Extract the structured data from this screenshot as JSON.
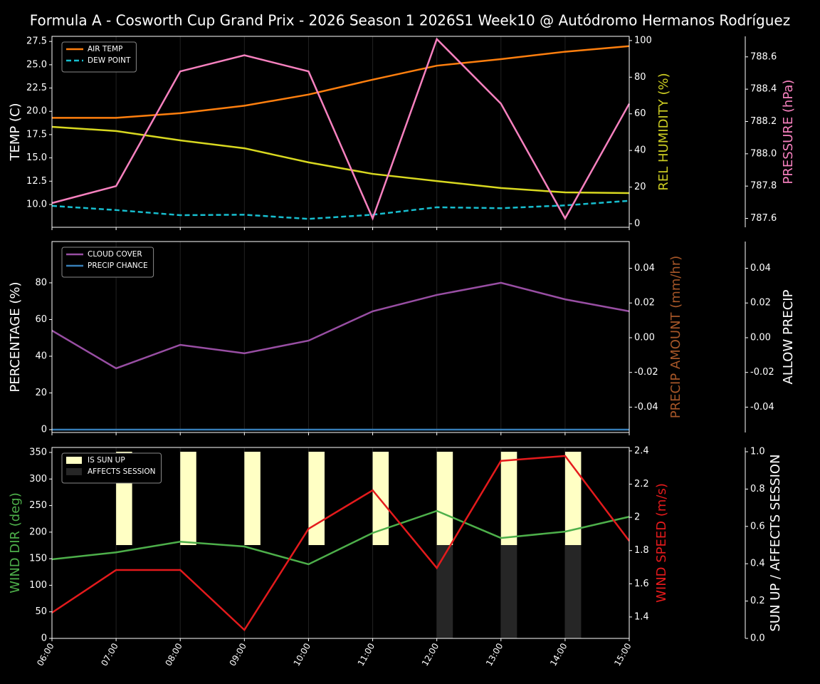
{
  "title": "Formula A - Cosworth Cup Grand Prix - 2026 Season 1 2026S1 Week10 @ Autódromo Hermanos Rodríguez",
  "chart_data": [
    {
      "type": "line",
      "ylabel": "TEMP (C)",
      "ylabel_color": "#ffffff",
      "ylim": [
        7.55,
        28.05
      ],
      "yticks": [
        {
          "value": 10,
          "label": "10.0"
        },
        12.5,
        {
          "value": 15,
          "label": "15.0"
        },
        17.5,
        {
          "value": 20,
          "label": "20.0"
        },
        22.5,
        {
          "value": 25,
          "label": "25.0"
        },
        27.5
      ],
      "y2label": "REL HUMIDITY (%)",
      "y2label_color": "#cccc22",
      "y2lim": [
        -1.95,
        102.3
      ],
      "y2ticks": [
        0,
        20,
        40,
        60,
        80,
        100
      ],
      "y3label": "PRESSURE (hPa)",
      "y3label_color": "#f781bf",
      "y3lim": [
        787.545,
        788.727
      ],
      "y3ticks": [
        787.6,
        787.8,
        {
          "value": 788,
          "label": "788.0"
        },
        788.2,
        788.4,
        788.6
      ],
      "series": [
        {
          "name": "AIR TEMP",
          "color": "#ff7f0e",
          "values": [
            19.3,
            19.3,
            19.8,
            20.6,
            21.8,
            23.4,
            24.9,
            25.6,
            26.4,
            27.0
          ]
        },
        {
          "name": "DEW POINT",
          "color": "#17becf",
          "dash": true,
          "values": [
            9.85,
            9.4,
            8.85,
            8.9,
            8.45,
            8.9,
            9.7,
            9.6,
            9.9,
            10.4
          ]
        },
        {
          "color": "#d8d820",
          "axis": "y2",
          "values": [
            52.9,
            50.6,
            45.5,
            41.2,
            33.5,
            27.2,
            23.3,
            19.5,
            17.1,
            16.7
          ]
        },
        {
          "color": "#f781bf",
          "axis": "y3",
          "values": [
            787.695,
            787.8,
            788.51,
            788.61,
            788.51,
            787.6,
            788.71,
            788.31,
            787.6,
            788.31
          ]
        }
      ]
    },
    {
      "type": "line",
      "ylabel": "PERCENTAGE (%)",
      "ylabel_color": "#ffffff",
      "ylim": [
        -1.55,
        102.5
      ],
      "yticks": [
        0,
        20,
        40,
        60,
        80
      ],
      "y2label": "PRECIP AMOUNT (mm/hr)",
      "y2label_color": "#a65628",
      "y2lim": [
        -0.0546,
        0.0554
      ],
      "y2ticks": [
        -0.04,
        -0.02,
        {
          "value": 0,
          "label": "0.00"
        },
        0.02,
        0.04
      ],
      "y3label": "ALLOW PRECIP",
      "y3label_color": "#ffffff",
      "y3lim": [
        -0.0546,
        0.0554
      ],
      "y3ticks": [
        -0.04,
        -0.02,
        {
          "value": 0,
          "label": "0.00"
        },
        0.02,
        0.04
      ],
      "series": [
        {
          "name": "CLOUD COVER",
          "color": "#984ea3",
          "values": [
            54,
            33.4,
            46.2,
            41.6,
            48.5,
            64.5,
            73.4,
            80,
            71,
            64.5
          ]
        },
        {
          "name": "PRECIP CHANCE",
          "color": "#377eb8",
          "values": [
            0,
            0,
            0,
            0,
            0,
            0,
            0,
            0,
            0,
            0
          ]
        }
      ]
    },
    {
      "type": "combo",
      "categories": [
        "06:00",
        "07:00",
        "08:00",
        "09:00",
        "10:00",
        "11:00",
        "12:00",
        "13:00",
        "14:00",
        "15:00"
      ],
      "ylabel": "WIND DIR (deg)",
      "ylabel_color": "#4daf4a",
      "ylim": [
        0,
        359.4
      ],
      "yticks": [
        0,
        50,
        100,
        150,
        200,
        250,
        300,
        350
      ],
      "y2label": "WIND SPEED (m/s)",
      "y2label_color": "#e41a1c",
      "y2lim": [
        1.271,
        2.421
      ],
      "y2ticks": [
        1.4,
        1.6,
        1.8,
        2.0,
        2.2,
        2.4
      ],
      "y3label": "SUN UP / AFFECTS SESSION",
      "y3label_color": "#ffffff",
      "y3lim": [
        0,
        1.023
      ],
      "y3ticks": [
        {
          "value": 0,
          "label": "0.0"
        },
        0.2,
        0.4,
        0.6,
        0.8,
        {
          "value": 1,
          "label": "1.0"
        }
      ],
      "series": [
        {
          "name": "IS SUN UP",
          "type": "bar",
          "color": "#ffffc4",
          "axis": "y3",
          "base": 0.5,
          "values": [
            0,
            0.5,
            0.5,
            0.5,
            0.5,
            0.5,
            0.5,
            0.5,
            0.5,
            0
          ]
        },
        {
          "name": "AFFECTS SESSION",
          "type": "bar",
          "color": "#262626",
          "axis": "y3",
          "values": [
            0,
            0,
            0,
            0,
            0,
            0,
            0.5,
            0.5,
            0.5,
            0
          ]
        },
        {
          "type": "line",
          "color": "#4daf4a",
          "values": [
            148.9,
            162,
            182,
            173,
            139.5,
            198.5,
            240,
            189,
            201,
            229
          ]
        },
        {
          "type": "line",
          "color": "#e41a1c",
          "axis": "y2",
          "values": [
            1.426,
            1.683,
            1.683,
            1.322,
            1.931,
            2.163,
            1.695,
            2.34,
            2.37,
            1.858
          ]
        }
      ]
    }
  ]
}
